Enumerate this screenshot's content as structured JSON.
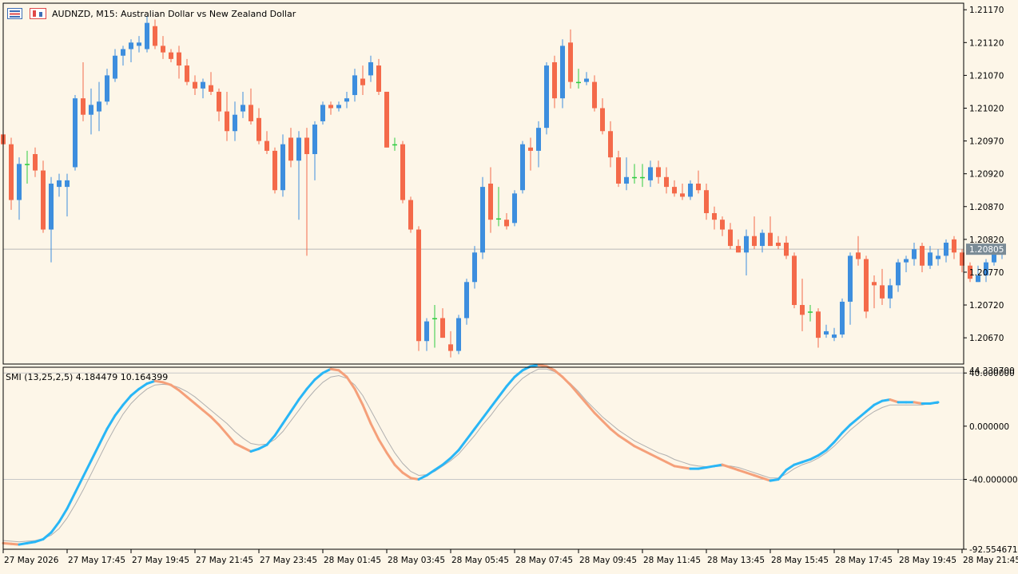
{
  "header": {
    "symbol_title": "AUDNZD, M15:  Australian Dollar vs New Zealand Dollar",
    "indicator_title": "SMI (13,25,2,5) 4.184479 10.164399"
  },
  "price_axis": {
    "ticks": [
      "1.21170",
      "1.21120",
      "1.21070",
      "1.21020",
      "1.20970",
      "1.20920",
      "1.20870",
      "1.20820",
      "1.20770",
      "1.20720",
      "1.20670"
    ],
    "current_price": "1.20805"
  },
  "indicator_axis": {
    "ticks": [
      "40.000000",
      "0.000000",
      "-40.000000",
      "-92.554671"
    ],
    "overlap_label": "44.330700"
  },
  "time_axis": {
    "labels": [
      "27 May 2026",
      "27 May 17:45",
      "27 May 19:45",
      "27 May 21:45",
      "27 May 23:45",
      "28 May 01:45",
      "28 May 03:45",
      "28 May 05:45",
      "28 May 07:45",
      "28 May 09:45",
      "28 May 11:45",
      "28 May 13:45",
      "28 May 15:45",
      "28 May 17:45",
      "28 May 19:45",
      "28 May 21:45"
    ]
  },
  "colors": {
    "background": "#fdf6e8",
    "bull": "#3d8ede",
    "bear": "#f46a4a",
    "doji": "#2ecc40",
    "smi_up": "#29b6f6",
    "smi_down": "#f5a07a",
    "signal": "#b0b0b0",
    "grid": "#c8c8c8"
  },
  "chart_data": [
    {
      "type": "candlestick",
      "title": "AUDNZD, M15:  Australian Dollar vs New Zealand Dollar",
      "ylim": [
        1.2063,
        1.2118
      ],
      "current_price": 1.20805,
      "candles": [
        [
          1.2098,
          1.20995,
          1.2096,
          1.20965
        ],
        [
          1.20965,
          1.20975,
          1.20865,
          1.2088
        ],
        [
          1.2088,
          1.20945,
          1.2085,
          1.20935
        ],
        [
          1.20935,
          1.20955,
          1.20905,
          1.20935
        ],
        [
          1.2095,
          1.2096,
          1.20915,
          1.20925
        ],
        [
          1.20925,
          1.2094,
          1.2083,
          1.20835
        ],
        [
          1.20835,
          1.20915,
          1.20785,
          1.20905
        ],
        [
          1.209,
          1.2092,
          1.20885,
          1.2091
        ],
        [
          1.209,
          1.2092,
          1.20855,
          1.2091
        ],
        [
          1.2093,
          1.2104,
          1.20925,
          1.21035
        ],
        [
          1.21035,
          1.2109,
          1.21,
          1.2101
        ],
        [
          1.2101,
          1.2105,
          1.2098,
          1.21025
        ],
        [
          1.21015,
          1.2106,
          1.20985,
          1.2103
        ],
        [
          1.2103,
          1.2108,
          1.21025,
          1.2107
        ],
        [
          1.21065,
          1.2111,
          1.2106,
          1.211
        ],
        [
          1.211,
          1.21115,
          1.21085,
          1.2111
        ],
        [
          1.2111,
          1.21125,
          1.2109,
          1.2112
        ],
        [
          1.21115,
          1.2113,
          1.21105,
          1.2112
        ],
        [
          1.2111,
          1.2116,
          1.21105,
          1.2115
        ],
        [
          1.21145,
          1.21155,
          1.2111,
          1.21115
        ],
        [
          1.21115,
          1.2113,
          1.21095,
          1.21105
        ],
        [
          1.21105,
          1.2111,
          1.2109,
          1.21095
        ],
        [
          1.21105,
          1.21115,
          1.21065,
          1.21085
        ],
        [
          1.21085,
          1.21095,
          1.21055,
          1.2106
        ],
        [
          1.2106,
          1.2107,
          1.2104,
          1.2105
        ],
        [
          1.2105,
          1.21065,
          1.21035,
          1.2106
        ],
        [
          1.21055,
          1.21075,
          1.2104,
          1.21045
        ],
        [
          1.21045,
          1.2105,
          1.21,
          1.21015
        ],
        [
          1.21015,
          1.21045,
          1.2097,
          1.20985
        ],
        [
          1.20985,
          1.2103,
          1.2097,
          1.2101
        ],
        [
          1.21015,
          1.21045,
          1.21005,
          1.21025
        ],
        [
          1.21025,
          1.2105,
          1.20995,
          1.21
        ],
        [
          1.21005,
          1.2102,
          1.20965,
          1.2097
        ],
        [
          1.2097,
          1.20985,
          1.2095,
          1.20955
        ],
        [
          1.20955,
          1.2096,
          1.2089,
          1.20895
        ],
        [
          1.20895,
          1.2098,
          1.20885,
          1.20965
        ],
        [
          1.20975,
          1.2099,
          1.2093,
          1.2094
        ],
        [
          1.2094,
          1.20985,
          1.2085,
          1.20975
        ],
        [
          1.20975,
          1.2099,
          1.20795,
          1.2095
        ],
        [
          1.2095,
          1.21,
          1.2091,
          1.20995
        ],
        [
          1.21,
          1.2103,
          1.20995,
          1.21025
        ],
        [
          1.21025,
          1.2103,
          1.2101,
          1.2102
        ],
        [
          1.2102,
          1.2103,
          1.21015,
          1.21025
        ],
        [
          1.2103,
          1.21045,
          1.2102,
          1.21035
        ],
        [
          1.2104,
          1.2108,
          1.2103,
          1.2107
        ],
        [
          1.21065,
          1.21085,
          1.2104,
          1.21055
        ],
        [
          1.2107,
          1.211,
          1.2106,
          1.2109
        ],
        [
          1.21085,
          1.21095,
          1.2104,
          1.21045
        ],
        [
          1.21045,
          1.21045,
          1.2096,
          1.2096
        ],
        [
          1.20965,
          1.20975,
          1.20955,
          1.20965
        ],
        [
          1.20965,
          1.2097,
          1.20875,
          1.2088
        ],
        [
          1.2088,
          1.20885,
          1.2083,
          1.20835
        ],
        [
          1.20835,
          1.2084,
          1.2065,
          1.20665
        ],
        [
          1.20665,
          1.207,
          1.2065,
          1.20695
        ],
        [
          1.207,
          1.2072,
          1.20655,
          1.207
        ],
        [
          1.207,
          1.20715,
          1.2067,
          1.2067
        ],
        [
          1.2066,
          1.2068,
          1.2064,
          1.2065
        ],
        [
          1.2065,
          1.20705,
          1.20645,
          1.207
        ],
        [
          1.207,
          1.2076,
          1.2069,
          1.20755
        ],
        [
          1.20755,
          1.2081,
          1.20745,
          1.208
        ],
        [
          1.208,
          1.20915,
          1.2079,
          1.209
        ],
        [
          1.20905,
          1.2093,
          1.2083,
          1.2085
        ],
        [
          1.20852,
          1.209,
          1.2084,
          1.20852
        ],
        [
          1.2085,
          1.2086,
          1.20835,
          1.2084
        ],
        [
          1.20845,
          1.20895,
          1.2084,
          1.2089
        ],
        [
          1.20895,
          1.2097,
          1.2089,
          1.20965
        ],
        [
          1.2096,
          1.20975,
          1.20925,
          1.20955
        ],
        [
          1.20955,
          1.21,
          1.2093,
          1.2099
        ],
        [
          1.2099,
          1.2109,
          1.2098,
          1.21085
        ],
        [
          1.2109,
          1.211,
          1.2102,
          1.21035
        ],
        [
          1.21035,
          1.21125,
          1.2102,
          1.21115
        ],
        [
          1.2112,
          1.2114,
          1.2105,
          1.2106
        ],
        [
          1.2106,
          1.2108,
          1.2105,
          1.2106
        ],
        [
          1.2106,
          1.21075,
          1.21055,
          1.21065
        ],
        [
          1.2106,
          1.2107,
          1.21015,
          1.2102
        ],
        [
          1.2102,
          1.21035,
          1.2098,
          1.20985
        ],
        [
          1.20985,
          1.21,
          1.2093,
          1.20945
        ],
        [
          1.20945,
          1.20955,
          1.209,
          1.20905
        ],
        [
          1.20905,
          1.20945,
          1.20895,
          1.20915
        ],
        [
          1.20915,
          1.20935,
          1.20905,
          1.20915
        ],
        [
          1.20915,
          1.20935,
          1.209,
          1.20915
        ],
        [
          1.2091,
          1.2094,
          1.209,
          1.2093
        ],
        [
          1.2093,
          1.2094,
          1.20905,
          1.20915
        ],
        [
          1.20915,
          1.2093,
          1.2089,
          1.209
        ],
        [
          1.209,
          1.2091,
          1.20885,
          1.2089
        ],
        [
          1.2089,
          1.20905,
          1.2088,
          1.20885
        ],
        [
          1.20885,
          1.2091,
          1.2088,
          1.20905
        ],
        [
          1.20905,
          1.20925,
          1.2089,
          1.20895
        ],
        [
          1.20895,
          1.20905,
          1.2085,
          1.2086
        ],
        [
          1.2086,
          1.2087,
          1.20835,
          1.2085
        ],
        [
          1.2085,
          1.20855,
          1.20825,
          1.20835
        ],
        [
          1.20835,
          1.20845,
          1.20805,
          1.2081
        ],
        [
          1.2081,
          1.2082,
          1.208,
          1.208
        ],
        [
          1.208,
          1.20835,
          1.20765,
          1.20825
        ],
        [
          1.20825,
          1.20855,
          1.20805,
          1.2081
        ],
        [
          1.2081,
          1.20835,
          1.208,
          1.2083
        ],
        [
          1.2083,
          1.20855,
          1.2081,
          1.2081
        ],
        [
          1.20815,
          1.20825,
          1.20805,
          1.2081
        ],
        [
          1.20815,
          1.20825,
          1.2079,
          1.20795
        ],
        [
          1.20795,
          1.208,
          1.20715,
          1.2072
        ],
        [
          1.2072,
          1.2076,
          1.2068,
          1.20705
        ],
        [
          1.2071,
          1.2072,
          1.20695,
          1.2071
        ],
        [
          1.2071,
          1.20715,
          1.20655,
          1.2067
        ],
        [
          1.20675,
          1.2069,
          1.2067,
          1.2068
        ],
        [
          1.2067,
          1.20685,
          1.20665,
          1.20675
        ],
        [
          1.20675,
          1.2073,
          1.2067,
          1.20725
        ],
        [
          1.20725,
          1.208,
          1.2069,
          1.20795
        ],
        [
          1.208,
          1.20825,
          1.2078,
          1.2079
        ],
        [
          1.2079,
          1.20795,
          1.207,
          1.2071
        ],
        [
          1.20755,
          1.20765,
          1.20715,
          1.2075
        ],
        [
          1.2075,
          1.20775,
          1.2072,
          1.2073
        ],
        [
          1.2073,
          1.2076,
          1.20715,
          1.2075
        ],
        [
          1.2075,
          1.2079,
          1.2074,
          1.20785
        ],
        [
          1.20785,
          1.20795,
          1.2077,
          1.2079
        ],
        [
          1.2079,
          1.20815,
          1.2078,
          1.20805
        ],
        [
          1.2081,
          1.20815,
          1.2077,
          1.2078
        ],
        [
          1.2078,
          1.2081,
          1.20775,
          1.208
        ],
        [
          1.2079,
          1.20805,
          1.2078,
          1.20795
        ],
        [
          1.20795,
          1.2082,
          1.20785,
          1.20815
        ],
        [
          1.2082,
          1.20825,
          1.2079,
          1.208
        ],
        [
          1.208,
          1.20805,
          1.2077,
          1.2078
        ],
        [
          1.2078,
          1.20785,
          1.20755,
          1.2076
        ],
        [
          1.20755,
          1.2078,
          1.20755,
          1.20765
        ],
        [
          1.20765,
          1.2079,
          1.20755,
          1.20785
        ],
        [
          1.20785,
          1.208,
          1.2078,
          1.208
        ],
        [
          1.208,
          1.2081,
          1.2079,
          1.20805
        ]
      ]
    },
    {
      "type": "line",
      "title": "SMI (13,25,2,5) 4.184479 10.164399",
      "ylim": [
        -92.554671,
        44.3307
      ],
      "levels": [
        40,
        -40
      ],
      "series": [
        {
          "values": [
            -88,
            -88.5,
            -89,
            -88,
            -87,
            -85,
            -80,
            -72,
            -62,
            -50,
            -38,
            -26,
            -14,
            -2,
            8,
            16,
            23,
            28,
            32,
            34,
            33,
            31,
            27,
            22,
            17,
            12,
            7,
            1,
            -6,
            -13,
            -16,
            -19,
            -17,
            -14,
            -7,
            2,
            11,
            20,
            28,
            35,
            40,
            43,
            42,
            37,
            28,
            16,
            2,
            -10,
            -20,
            -29,
            -35,
            -39,
            -40,
            -37,
            -33,
            -29,
            -24,
            -18,
            -10,
            -2,
            6,
            14,
            22,
            30,
            37,
            42,
            45,
            46,
            45,
            42,
            37,
            31,
            24,
            17,
            10,
            4,
            -2,
            -7,
            -11,
            -15,
            -18,
            -21,
            -24,
            -27,
            -30,
            -31,
            -32,
            -32,
            -31,
            -30,
            -29,
            -31,
            -33,
            -35,
            -37,
            -39,
            -41,
            -40,
            -33,
            -29,
            -27,
            -25,
            -22,
            -18,
            -12,
            -5,
            1,
            6,
            11,
            16,
            19,
            20,
            18,
            18,
            18,
            17,
            17,
            18
          ]
        },
        {
          "values": [
            -86,
            -86.5,
            -87,
            -86.5,
            -86,
            -84.5,
            -82,
            -77,
            -69,
            -59,
            -48,
            -36,
            -24,
            -12,
            -1,
            9,
            17,
            23,
            28,
            31,
            31.5,
            31,
            29,
            26,
            22,
            17,
            12,
            7,
            2,
            -4,
            -9,
            -13,
            -14,
            -13.5,
            -10,
            -4,
            4,
            12,
            20,
            27,
            33,
            37,
            38,
            36,
            31,
            23,
            12,
            1,
            -10,
            -20,
            -28,
            -34,
            -37,
            -36.5,
            -34,
            -30,
            -26,
            -21,
            -14,
            -7,
            1,
            8,
            16,
            23,
            30,
            36,
            40,
            43,
            43,
            41,
            37,
            32,
            26,
            19,
            13,
            7,
            2,
            -3,
            -7,
            -11,
            -14,
            -17,
            -20,
            -22,
            -25,
            -27,
            -29,
            -30,
            -30.5,
            -30.5,
            -30,
            -30,
            -31,
            -33,
            -35,
            -37,
            -39,
            -39,
            -36,
            -32,
            -29,
            -27,
            -24,
            -20,
            -15,
            -9,
            -3,
            2,
            7,
            11,
            14,
            16,
            16,
            16,
            16,
            16,
            17,
            17
          ]
        }
      ]
    }
  ]
}
